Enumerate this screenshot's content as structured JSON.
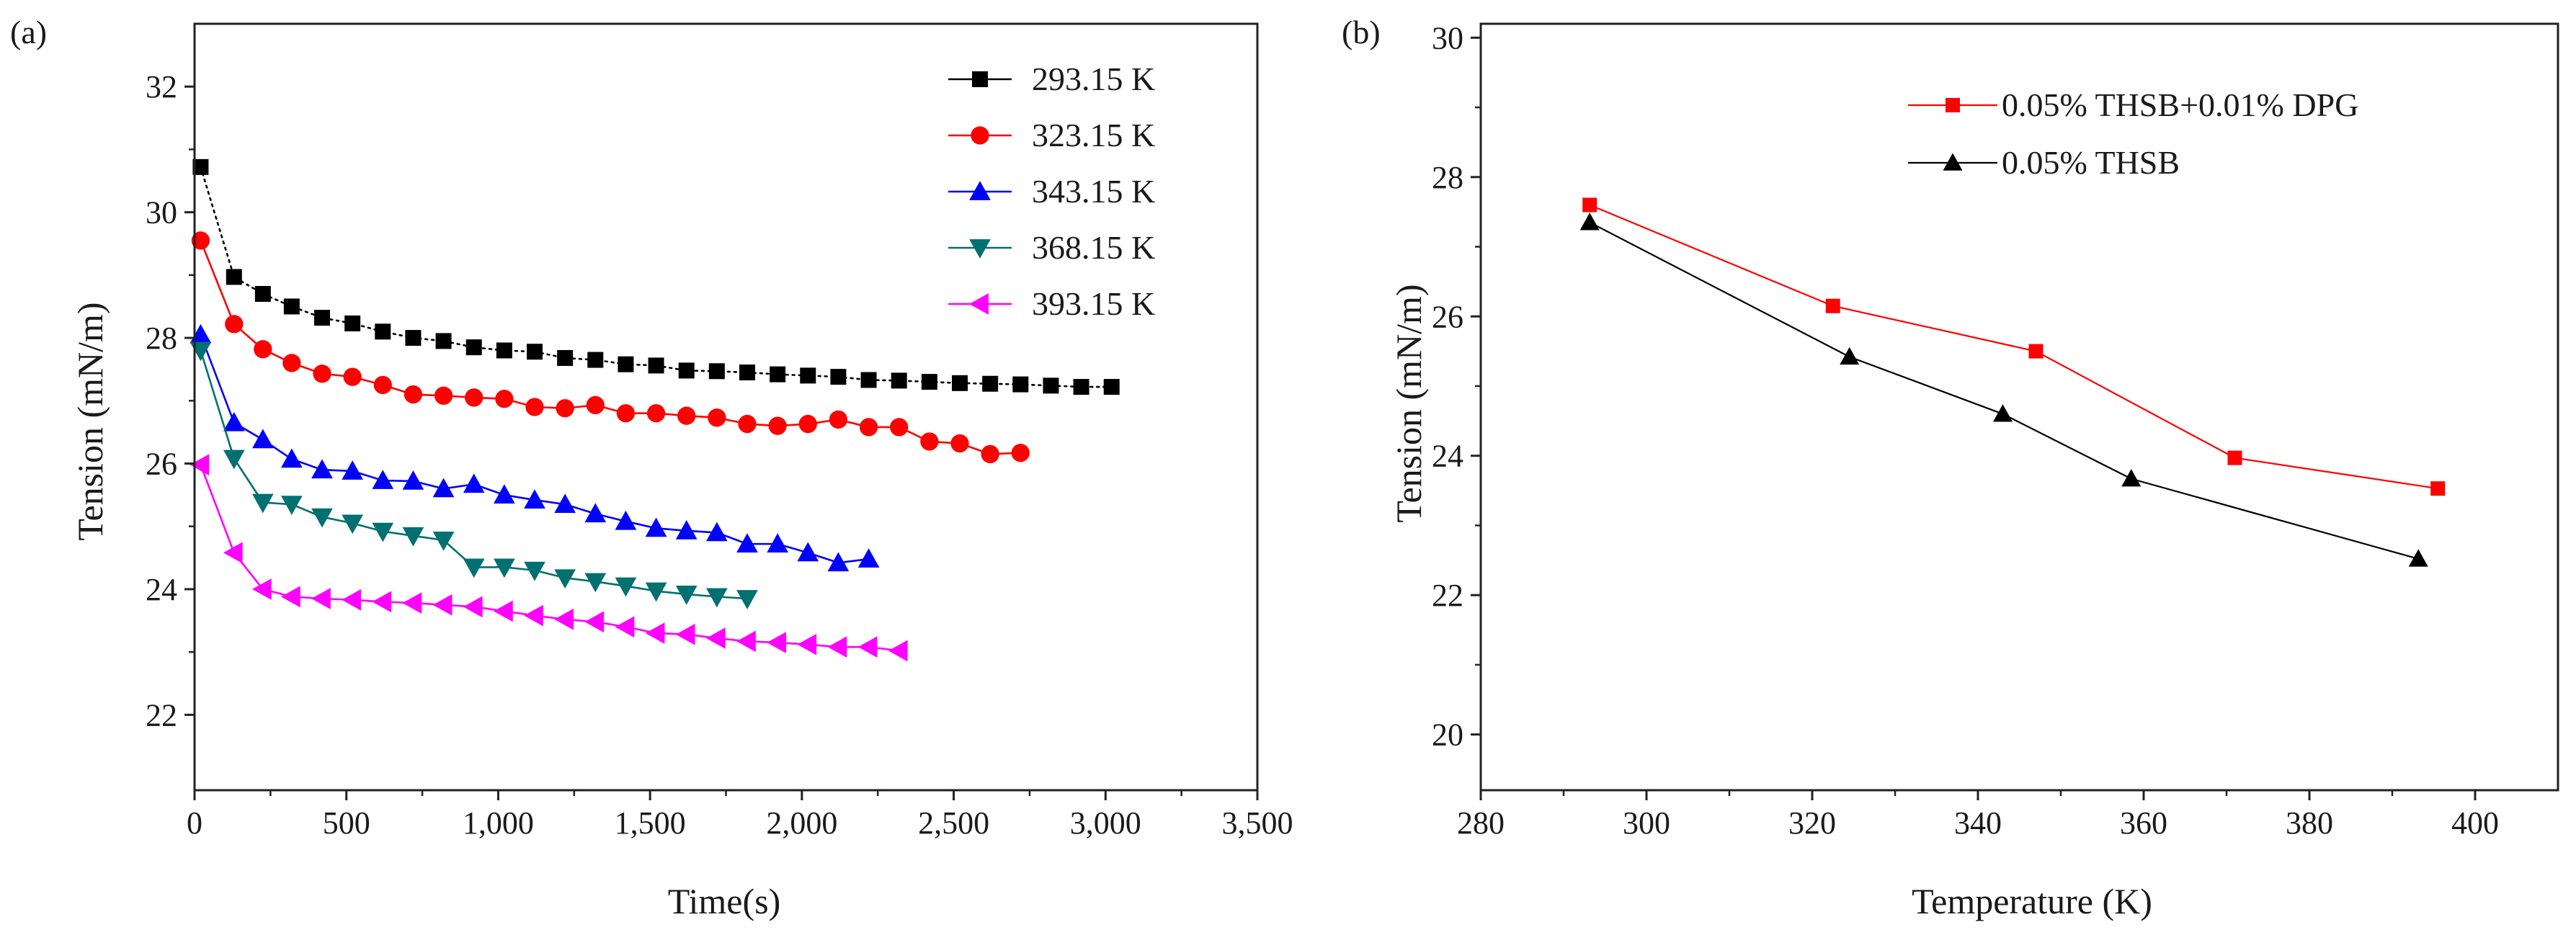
{
  "chart_data": [
    {
      "panel": "(a)",
      "type": "line",
      "xlabel": "Time(s)",
      "ylabel": "Tension (mN/m)",
      "xlim": [
        0,
        3500
      ],
      "ylim": [
        20.8,
        33.0
      ],
      "xticks": [
        0,
        500,
        1000,
        1500,
        2000,
        2500,
        3000,
        3500
      ],
      "xtick_labels": [
        "0",
        "500",
        "1,000",
        "1,500",
        "2,000",
        "2,500",
        "3,000",
        "3,500"
      ],
      "yticks": [
        22,
        24,
        26,
        28,
        30,
        32
      ],
      "ytick_labels": [
        "22",
        "24",
        "26",
        "28",
        "30",
        "32"
      ],
      "legend_position": "top-right",
      "series": [
        {
          "name": "293.15 K",
          "color": "#000000",
          "marker": "square",
          "line_style": "dotted",
          "x": [
            20,
            130,
            225,
            320,
            420,
            520,
            620,
            720,
            820,
            920,
            1020,
            1120,
            1220,
            1320,
            1420,
            1520,
            1620,
            1720,
            1820,
            1920,
            2020,
            2120,
            2220,
            2320,
            2420,
            2520,
            2620,
            2720,
            2820,
            2920,
            3020
          ],
          "y": [
            30.72,
            28.97,
            28.7,
            28.5,
            28.32,
            28.23,
            28.1,
            28.0,
            27.95,
            27.85,
            27.8,
            27.78,
            27.68,
            27.65,
            27.58,
            27.56,
            27.48,
            27.47,
            27.45,
            27.42,
            27.4,
            27.38,
            27.33,
            27.32,
            27.3,
            27.28,
            27.27,
            27.26,
            27.24,
            27.22,
            27.22
          ]
        },
        {
          "name": "323.15 K",
          "color": "#ff0000",
          "marker": "circle",
          "line_style": "solid",
          "x": [
            20,
            130,
            225,
            320,
            420,
            520,
            620,
            720,
            820,
            920,
            1020,
            1120,
            1220,
            1320,
            1420,
            1520,
            1620,
            1720,
            1820,
            1920,
            2020,
            2120,
            2220,
            2320,
            2420,
            2520,
            2620,
            2720
          ],
          "y": [
            29.55,
            28.22,
            27.82,
            27.6,
            27.43,
            27.38,
            27.25,
            27.1,
            27.08,
            27.05,
            27.03,
            26.9,
            26.88,
            26.93,
            26.8,
            26.8,
            26.76,
            26.73,
            26.63,
            26.6,
            26.63,
            26.7,
            26.58,
            26.58,
            26.35,
            26.32,
            26.15,
            26.17
          ]
        },
        {
          "name": "343.15 K",
          "color": "#0000ff",
          "marker": "triangle-up",
          "line_style": "solid",
          "x": [
            20,
            130,
            225,
            320,
            420,
            520,
            620,
            720,
            820,
            920,
            1020,
            1120,
            1220,
            1320,
            1420,
            1520,
            1620,
            1720,
            1820,
            1920,
            2020,
            2120,
            2220
          ],
          "y": [
            28.05,
            26.65,
            26.38,
            26.07,
            25.9,
            25.88,
            25.73,
            25.72,
            25.6,
            25.67,
            25.5,
            25.42,
            25.35,
            25.2,
            25.08,
            24.97,
            24.93,
            24.9,
            24.72,
            24.72,
            24.58,
            24.42,
            24.48
          ]
        },
        {
          "name": "368.15 K",
          "color": "#007070",
          "marker": "triangle-down",
          "line_style": "solid",
          "x": [
            20,
            130,
            225,
            320,
            420,
            520,
            620,
            720,
            820,
            920,
            1020,
            1120,
            1220,
            1320,
            1420,
            1520,
            1620,
            1720,
            1820
          ],
          "y": [
            27.8,
            26.08,
            25.38,
            25.35,
            25.15,
            25.05,
            24.92,
            24.85,
            24.78,
            24.35,
            24.35,
            24.3,
            24.18,
            24.12,
            24.05,
            23.97,
            23.92,
            23.88,
            23.85
          ]
        },
        {
          "name": "393.15 K",
          "color": "#ff00ff",
          "marker": "triangle-left",
          "line_style": "solid",
          "x": [
            20,
            130,
            225,
            320,
            420,
            520,
            620,
            720,
            820,
            920,
            1020,
            1120,
            1220,
            1320,
            1420,
            1520,
            1620,
            1720,
            1820,
            1920,
            2020,
            2120,
            2220,
            2320
          ],
          "y": [
            25.98,
            24.58,
            24.0,
            23.88,
            23.85,
            23.83,
            23.8,
            23.78,
            23.75,
            23.72,
            23.65,
            23.58,
            23.52,
            23.48,
            23.4,
            23.3,
            23.28,
            23.22,
            23.17,
            23.15,
            23.12,
            23.08,
            23.08,
            23.02
          ]
        }
      ]
    },
    {
      "panel": "(b)",
      "type": "line",
      "xlabel": "Temperature (K)",
      "ylabel": "Tension (mN/m)",
      "xlim": [
        280,
        410
      ],
      "ylim": [
        19.2,
        30.2
      ],
      "xticks": [
        280,
        300,
        320,
        340,
        360,
        380,
        400
      ],
      "xtick_labels": [
        "280",
        "300",
        "320",
        "340",
        "360",
        "380",
        "400"
      ],
      "yticks": [
        20,
        22,
        24,
        26,
        28,
        30
      ],
      "ytick_labels": [
        "20",
        "22",
        "24",
        "26",
        "28",
        "30"
      ],
      "legend_position": "top-right",
      "series": [
        {
          "name": "0.05% THSB+0.01% DPG",
          "color": "#ff0000",
          "marker": "square",
          "line_style": "solid",
          "x": [
            293.15,
            322.5,
            347.0,
            371.0,
            395.5
          ],
          "y": [
            27.6,
            26.15,
            25.5,
            23.97,
            23.53
          ]
        },
        {
          "name": "0.05% THSB",
          "color": "#000000",
          "marker": "triangle-up",
          "line_style": "solid",
          "x": [
            293.15,
            324.5,
            343.0,
            358.5,
            393.15
          ],
          "y": [
            27.35,
            25.42,
            24.6,
            23.67,
            22.52
          ]
        }
      ]
    }
  ]
}
